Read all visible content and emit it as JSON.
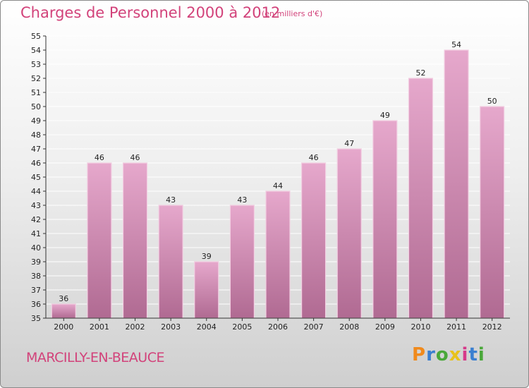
{
  "title": "Charges de Personnel 2000 à 2012",
  "subtitle": "(en milliers d'€)",
  "place": "MARCILLY-EN-BEAUCE",
  "logo": {
    "letters": [
      "P",
      "r",
      "o",
      "x",
      "i",
      "t",
      "i"
    ],
    "colors": [
      "#f08a1c",
      "#3a7fd0",
      "#4aa83a",
      "#e8c21a",
      "#d63a8a",
      "#3a7fd0",
      "#4aa83a"
    ]
  },
  "colors": {
    "accent": "#d2427a",
    "bar_top": "#e6a8cc",
    "bar_bottom": "#b06a92",
    "grid": "#ffffff"
  },
  "chart_data": {
    "type": "bar",
    "categories": [
      "2000",
      "2001",
      "2002",
      "2003",
      "2004",
      "2005",
      "2006",
      "2007",
      "2008",
      "2009",
      "2010",
      "2011",
      "2012"
    ],
    "values": [
      36,
      46,
      46,
      43,
      39,
      43,
      44,
      46,
      47,
      49,
      52,
      54,
      50
    ],
    "ylim": [
      35,
      55
    ],
    "yticks": [
      35,
      36,
      37,
      38,
      39,
      40,
      41,
      42,
      43,
      44,
      45,
      46,
      47,
      48,
      49,
      50,
      51,
      52,
      53,
      54,
      55
    ],
    "grid": true,
    "title": "Charges de Personnel 2000 à 2012",
    "xlabel": "",
    "ylabel": ""
  }
}
